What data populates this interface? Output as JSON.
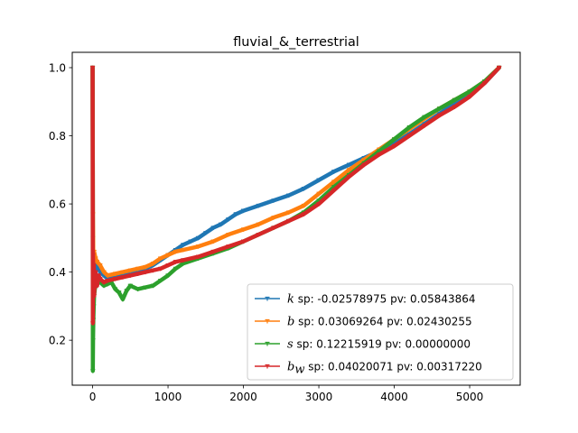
{
  "chart_data": {
    "type": "line",
    "title": "fluvial_&_terrestrial",
    "xlabel": "",
    "ylabel": "",
    "xlim": [
      -270,
      5670
    ],
    "ylim": [
      0.068,
      1.045
    ],
    "xticks": [
      0,
      1000,
      2000,
      3000,
      4000,
      5000
    ],
    "yticks": [
      0.2,
      0.4,
      0.6,
      0.8,
      1.0
    ],
    "xtick_labels": [
      "0",
      "1000",
      "2000",
      "3000",
      "4000",
      "5000"
    ],
    "ytick_labels": [
      "0.2",
      "0.4",
      "0.6",
      "0.8",
      "1.0"
    ],
    "grid": false,
    "legend_position": "lower-right",
    "series": [
      {
        "symbol": "k",
        "subscript": "",
        "stats": " sp: -0.02578975 pv: 0.05843864",
        "color": "#1f77b4",
        "x": [
          0,
          5,
          10,
          20,
          40,
          60,
          100,
          150,
          200,
          300,
          400,
          500,
          600,
          700,
          800,
          900,
          1000,
          1100,
          1200,
          1300,
          1400,
          1500,
          1600,
          1700,
          1800,
          1900,
          2000,
          2200,
          2400,
          2600,
          2800,
          3000,
          3200,
          3400,
          3600,
          3800,
          4000,
          4200,
          4400,
          4600,
          4800,
          5000,
          5200,
          5390
        ],
        "y": [
          1.0,
          0.5,
          0.38,
          0.44,
          0.41,
          0.42,
          0.4,
          0.39,
          0.38,
          0.385,
          0.39,
          0.4,
          0.405,
          0.41,
          0.42,
          0.435,
          0.45,
          0.465,
          0.48,
          0.49,
          0.5,
          0.515,
          0.53,
          0.54,
          0.555,
          0.57,
          0.58,
          0.595,
          0.61,
          0.625,
          0.645,
          0.67,
          0.695,
          0.715,
          0.735,
          0.755,
          0.78,
          0.805,
          0.835,
          0.865,
          0.895,
          0.92,
          0.955,
          1.0
        ]
      },
      {
        "symbol": "b",
        "subscript": "",
        "stats": " sp: 0.03069264 pv: 0.02430255",
        "color": "#ff7f0e",
        "x": [
          0,
          5,
          10,
          20,
          40,
          60,
          100,
          150,
          200,
          300,
          400,
          500,
          600,
          700,
          800,
          900,
          1000,
          1100,
          1200,
          1400,
          1600,
          1800,
          2000,
          2200,
          2400,
          2600,
          2800,
          3000,
          3200,
          3400,
          3600,
          3800,
          4000,
          4200,
          4400,
          4600,
          4800,
          5000,
          5200,
          5390
        ],
        "y": [
          1.0,
          0.57,
          0.43,
          0.46,
          0.44,
          0.43,
          0.42,
          0.4,
          0.39,
          0.395,
          0.4,
          0.405,
          0.41,
          0.415,
          0.425,
          0.44,
          0.45,
          0.46,
          0.465,
          0.475,
          0.49,
          0.51,
          0.525,
          0.54,
          0.56,
          0.575,
          0.595,
          0.63,
          0.665,
          0.7,
          0.73,
          0.76,
          0.79,
          0.82,
          0.85,
          0.88,
          0.905,
          0.93,
          0.96,
          1.0
        ]
      },
      {
        "symbol": "s",
        "subscript": "",
        "stats": " sp: 0.12215919 pv: 0.00000000",
        "color": "#2ca02c",
        "x": [
          0,
          3,
          6,
          10,
          15,
          20,
          30,
          40,
          60,
          80,
          100,
          150,
          200,
          250,
          300,
          350,
          400,
          450,
          500,
          600,
          700,
          800,
          900,
          1000,
          1100,
          1200,
          1400,
          1600,
          1800,
          2000,
          2200,
          2400,
          2600,
          2800,
          3000,
          3200,
          3400,
          3600,
          3800,
          4000,
          4200,
          4400,
          4600,
          4800,
          5000,
          5200,
          5390
        ],
        "y": [
          1.0,
          0.11,
          0.2,
          0.26,
          0.3,
          0.33,
          0.35,
          0.36,
          0.37,
          0.38,
          0.37,
          0.36,
          0.365,
          0.37,
          0.35,
          0.34,
          0.32,
          0.345,
          0.36,
          0.35,
          0.355,
          0.36,
          0.375,
          0.39,
          0.41,
          0.425,
          0.44,
          0.455,
          0.47,
          0.49,
          0.51,
          0.53,
          0.55,
          0.575,
          0.61,
          0.65,
          0.685,
          0.72,
          0.755,
          0.79,
          0.825,
          0.855,
          0.88,
          0.905,
          0.93,
          0.96,
          1.0
        ]
      },
      {
        "symbol": "b",
        "subscript": "w",
        "stats": " sp: 0.04020071 pv: 0.00317220",
        "color": "#d62728",
        "x": [
          0,
          3,
          6,
          10,
          15,
          20,
          30,
          40,
          60,
          80,
          100,
          150,
          200,
          300,
          400,
          500,
          600,
          700,
          800,
          900,
          1000,
          1100,
          1200,
          1400,
          1600,
          1800,
          2000,
          2200,
          2400,
          2600,
          2800,
          3000,
          3200,
          3400,
          3600,
          3800,
          4000,
          4200,
          4400,
          4600,
          4800,
          5000,
          5200,
          5390
        ],
        "y": [
          1.0,
          0.25,
          0.45,
          0.35,
          0.42,
          0.33,
          0.38,
          0.4,
          0.36,
          0.39,
          0.38,
          0.37,
          0.375,
          0.38,
          0.385,
          0.39,
          0.395,
          0.4,
          0.405,
          0.41,
          0.42,
          0.43,
          0.435,
          0.445,
          0.46,
          0.475,
          0.49,
          0.51,
          0.53,
          0.55,
          0.57,
          0.6,
          0.64,
          0.68,
          0.715,
          0.745,
          0.77,
          0.8,
          0.83,
          0.86,
          0.885,
          0.915,
          0.955,
          1.0
        ]
      }
    ]
  }
}
